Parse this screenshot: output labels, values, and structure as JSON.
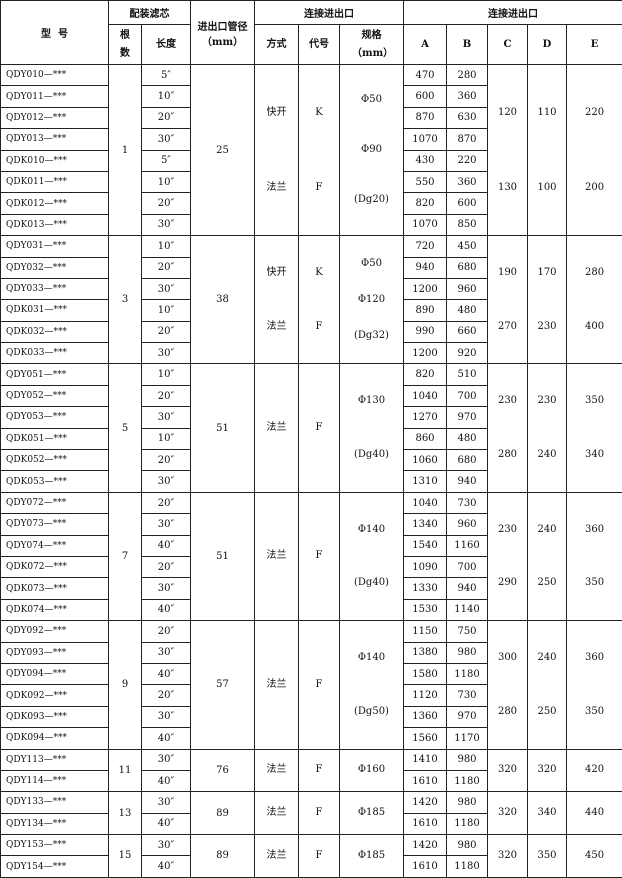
{
  "header": {
    "model": "型  号",
    "filter": "配装滤芯",
    "count": "根数",
    "length": "长度",
    "pipe": "进出口管径（mm）",
    "connection": "连接进出口",
    "mode": "方式",
    "code": "代号",
    "spec": "规格（mm）",
    "dims": "连接进出口",
    "A": "A",
    "B": "B",
    "C": "C",
    "D": "D",
    "E": "E"
  },
  "groups": [
    {
      "count": "1",
      "pipe": "25",
      "mode": [
        "快开",
        "法兰"
      ],
      "code": [
        "K",
        "F"
      ],
      "spec": [
        "Φ50",
        "Φ90",
        "(Dg20)"
      ],
      "C": [
        "120",
        "130"
      ],
      "D": [
        "110",
        "100"
      ],
      "E": [
        "220",
        "200"
      ],
      "rows": [
        {
          "model": "QDY010—***",
          "length": "5″",
          "A": "470",
          "B": "280"
        },
        {
          "model": "QDY011—***",
          "length": "10″",
          "A": "600",
          "B": "360"
        },
        {
          "model": "QDY012—***",
          "length": "20″",
          "A": "870",
          "B": "630"
        },
        {
          "model": "QDY013—***",
          "length": "30″",
          "A": "1070",
          "B": "870"
        },
        {
          "model": "QDK010—***",
          "length": "5″",
          "A": "430",
          "B": "220"
        },
        {
          "model": "QDK011—***",
          "length": "10″",
          "A": "550",
          "B": "360"
        },
        {
          "model": "QDK012—***",
          "length": "20″",
          "A": "820",
          "B": "600"
        },
        {
          "model": "QDK013—***",
          "length": "30″",
          "A": "1070",
          "B": "850"
        }
      ]
    },
    {
      "count": "3",
      "pipe": "38",
      "mode": [
        "快开",
        "法兰"
      ],
      "code": [
        "K",
        "F"
      ],
      "spec": [
        "Φ50",
        "Φ120",
        "(Dg32)"
      ],
      "C": [
        "190",
        "270"
      ],
      "D": [
        "170",
        "230"
      ],
      "E": [
        "280",
        "400"
      ],
      "rows": [
        {
          "model": "QDY031—***",
          "length": "10″",
          "A": "720",
          "B": "450"
        },
        {
          "model": "QDY032—***",
          "length": "20″",
          "A": "940",
          "B": "680"
        },
        {
          "model": "QDY033—***",
          "length": "30″",
          "A": "1200",
          "B": "960"
        },
        {
          "model": "QDK031—***",
          "length": "10″",
          "A": "890",
          "B": "480"
        },
        {
          "model": "QDK032—***",
          "length": "20″",
          "A": "990",
          "B": "660"
        },
        {
          "model": "QDK033—***",
          "length": "30″",
          "A": "1200",
          "B": "920"
        }
      ]
    },
    {
      "count": "5",
      "pipe": "51",
      "mode": [
        "法兰"
      ],
      "code": [
        "F"
      ],
      "spec": [
        "Φ130",
        "(Dg40)"
      ],
      "C": [
        "230",
        "280"
      ],
      "D": [
        "230",
        "240"
      ],
      "E": [
        "350",
        "340"
      ],
      "rows": [
        {
          "model": "QDY051—***",
          "length": "10″",
          "A": "820",
          "B": "510"
        },
        {
          "model": "QDY052—***",
          "length": "20″",
          "A": "1040",
          "B": "700"
        },
        {
          "model": "QDY053—***",
          "length": "30″",
          "A": "1270",
          "B": "970"
        },
        {
          "model": "QDK051—***",
          "length": "10″",
          "A": "860",
          "B": "480"
        },
        {
          "model": "QDK052—***",
          "length": "20″",
          "A": "1060",
          "B": "680"
        },
        {
          "model": "QDK053—***",
          "length": "30″",
          "A": "1310",
          "B": "940"
        }
      ]
    },
    {
      "count": "7",
      "pipe": "51",
      "mode": [
        "法兰"
      ],
      "code": [
        "F"
      ],
      "spec": [
        "Φ140",
        "(Dg40)"
      ],
      "C": [
        "230",
        "290"
      ],
      "D": [
        "240",
        "250"
      ],
      "E": [
        "360",
        "350"
      ],
      "rows": [
        {
          "model": "QDY072—***",
          "length": "20″",
          "A": "1040",
          "B": "730"
        },
        {
          "model": "QDY073—***",
          "length": "30″",
          "A": "1340",
          "B": "960"
        },
        {
          "model": "QDY074—***",
          "length": "40″",
          "A": "1540",
          "B": "1160"
        },
        {
          "model": "QDK072—***",
          "length": "20″",
          "A": "1090",
          "B": "700"
        },
        {
          "model": "QDK073—***",
          "length": "30″",
          "A": "1330",
          "B": "940"
        },
        {
          "model": "QDK074—***",
          "length": "40″",
          "A": "1530",
          "B": "1140"
        }
      ]
    },
    {
      "count": "9",
      "pipe": "57",
      "mode": [
        "法兰"
      ],
      "code": [
        "F"
      ],
      "spec": [
        "Φ140",
        "(Dg50)"
      ],
      "C": [
        "300",
        "280"
      ],
      "D": [
        "240",
        "250"
      ],
      "E": [
        "360",
        "350"
      ],
      "rows": [
        {
          "model": "QDY092—***",
          "length": "20″",
          "A": "1150",
          "B": "750"
        },
        {
          "model": "QDY093—***",
          "length": "30″",
          "A": "1380",
          "B": "980"
        },
        {
          "model": "QDY094—***",
          "length": "40″",
          "A": "1580",
          "B": "1180"
        },
        {
          "model": "QDK092—***",
          "length": "20″",
          "A": "1120",
          "B": "730"
        },
        {
          "model": "QDK093—***",
          "length": "30″",
          "A": "1360",
          "B": "970"
        },
        {
          "model": "QDK094—***",
          "length": "40″",
          "A": "1560",
          "B": "1170"
        }
      ]
    },
    {
      "count": "11",
      "pipe": "76",
      "mode": [
        "法兰"
      ],
      "code": [
        "F"
      ],
      "spec": [
        "Φ160"
      ],
      "C": [
        "320"
      ],
      "D": [
        "320"
      ],
      "E": [
        "420"
      ],
      "rows": [
        {
          "model": "QDY113—***",
          "length": "30″",
          "A": "1410",
          "B": "980"
        },
        {
          "model": "QDY114—***",
          "length": "40″",
          "A": "1610",
          "B": "1180"
        }
      ]
    },
    {
      "count": "13",
      "pipe": "89",
      "mode": [
        "法兰"
      ],
      "code": [
        "F"
      ],
      "spec": [
        "Φ185"
      ],
      "C": [
        "320"
      ],
      "D": [
        "340"
      ],
      "E": [
        "440"
      ],
      "rows": [
        {
          "model": "QDY133—***",
          "length": "30″",
          "A": "1420",
          "B": "980"
        },
        {
          "model": "QDY134—***",
          "length": "40″",
          "A": "1610",
          "B": "1180"
        }
      ]
    },
    {
      "count": "15",
      "pipe": "89",
      "mode": [
        "法兰"
      ],
      "code": [
        "F"
      ],
      "spec": [
        "Φ185"
      ],
      "C": [
        "320"
      ],
      "D": [
        "350"
      ],
      "E": [
        "450"
      ],
      "rows": [
        {
          "model": "QDY153—***",
          "length": "30″",
          "A": "1420",
          "B": "980"
        },
        {
          "model": "QDY154—***",
          "length": "40″",
          "A": "1610",
          "B": "1180"
        }
      ]
    }
  ]
}
